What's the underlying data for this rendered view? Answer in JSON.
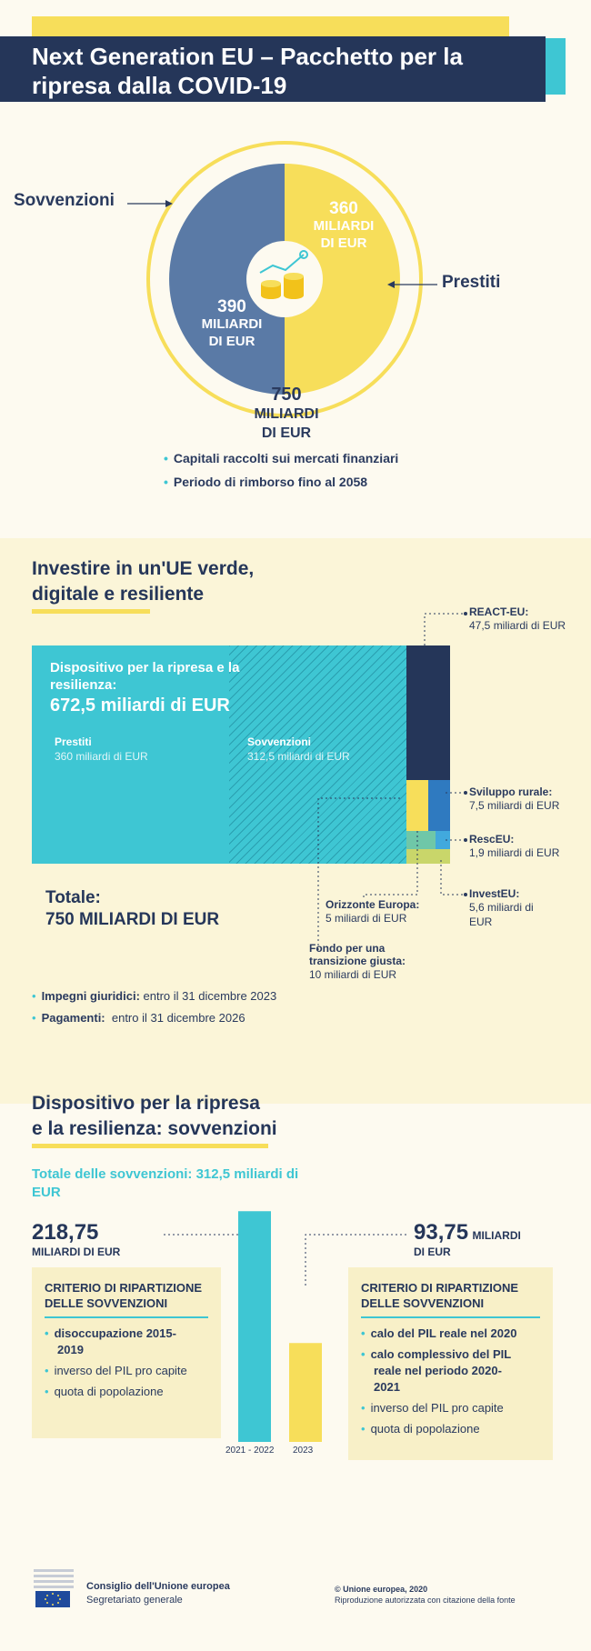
{
  "header": {
    "title": "Next Generation EU – Pacchetto per la ripresa dalla COVID-19"
  },
  "overview": {
    "grants_label": "Sovvenzioni",
    "loans_label": "Prestiti",
    "loans_amount": "360",
    "loans_unit_1": "MILIARDI",
    "loans_unit_2": "DI EUR",
    "grants_amount": "390",
    "grants_unit_1": "MILIARDI",
    "grants_unit_2": "DI EUR",
    "total_amount": "750",
    "total_unit_1": "MILIARDI",
    "total_unit_2": "DI EUR",
    "bullets": [
      "Capitali raccolti sui mercati finanziari",
      "Periodo di rimborso fino al 2058"
    ]
  },
  "invest": {
    "title_1": "Investire in un'UE verde,",
    "title_2": "digitale e resiliente",
    "rrf_label_1": "Dispositivo per la ripresa e la",
    "rrf_label_2": "resilienza:",
    "rrf_amount": "672,5 miliardi di EUR",
    "loans_label": "Prestiti",
    "loans_value": "360 miliardi di EUR",
    "grants_label": "Sovvenzioni",
    "grants_value": "312,5 miliardi di EUR",
    "react_label": "REACT-EU:",
    "react_value": "47,5 miliardi di EUR",
    "rural_label": "Sviluppo rurale:",
    "rural_value": "7,5 miliardi di EUR",
    "resc_label": "RescEU:",
    "resc_value": "1,9 miliardi di EUR",
    "investeu_label": "InvestEU:",
    "investeu_value_1": "5,6 miliardi di",
    "investeu_value_2": "EUR",
    "horizon_label": "Orizzonte Europa:",
    "horizon_value": "5 miliardi di EUR",
    "jtf_label_1": "Fondo per una",
    "jtf_label_2": "transizione giusta:",
    "jtf_value": "10 miliardi di EUR",
    "total_label": "Totale:",
    "total_value": "750 MILIARDI DI EUR",
    "commit_label": "Impegni giuridici:",
    "commit_value": " entro il 31 dicembre 2023",
    "pay_label": "Pagamenti:",
    "pay_value": "  entro il 31 dicembre 2026"
  },
  "rrf_grants": {
    "title_1": "Dispositivo per la ripresa",
    "title_2": "e la resilienza: sovvenzioni",
    "total_1": "Totale delle sovvenzioni: 312,5 miliardi di",
    "total_2": "EUR",
    "left_amount": "218,75",
    "left_unit": "MILIARDI DI EUR",
    "right_amount": "93,75",
    "right_unit_1": "MILIARDI",
    "right_unit_2": "DI EUR",
    "bar_left_label": "2021 - 2022",
    "bar_right_label": "2023",
    "bar_left_value": 218.75,
    "bar_right_value": 93.75,
    "crit_title_1": "CRITERIO DI RIPARTIZIONE",
    "crit_title_2": "DELLE SOVVENZIONI",
    "left_criteria": [
      {
        "text": "disoccupazione 2015-",
        "text2": "2019",
        "bold": true
      },
      {
        "text": "inverso del PIL pro capite",
        "bold": false
      },
      {
        "text": "quota di popolazione",
        "bold": false
      }
    ],
    "right_criteria": [
      {
        "text": "calo del PIL reale nel 2020",
        "bold": true
      },
      {
        "text": "calo complessivo del PIL",
        "text2": "reale nel periodo 2020-",
        "text3": "2021",
        "bold": true
      },
      {
        "text": "inverso del PIL pro capite",
        "bold": false
      },
      {
        "text": "quota di popolazione",
        "bold": false
      }
    ]
  },
  "footer": {
    "org_1": "Consiglio dell'Unione europea",
    "org_2": "Segretariato generale",
    "copy_1": "© Unione europea, 2020",
    "copy_2": "Riproduzione autorizzata con citazione della fonte"
  },
  "colors": {
    "navy": "#253659",
    "teal": "#3ec6d3",
    "yellow": "#f7de5a",
    "slate": "#5a7aa6"
  }
}
